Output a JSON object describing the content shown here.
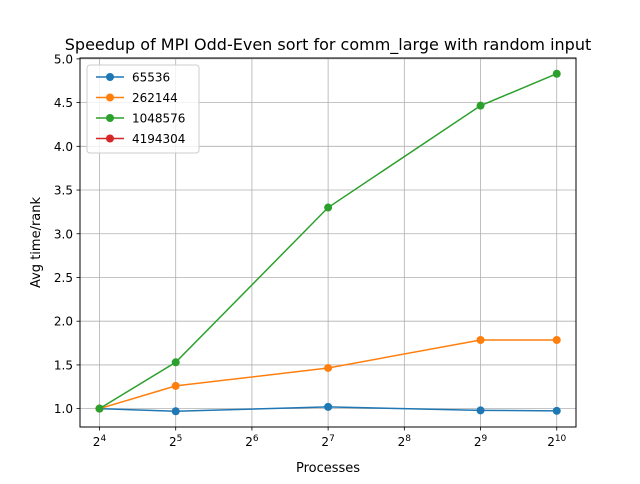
{
  "chart_data": {
    "type": "line",
    "title": "Speedup of MPI Odd-Even sort for comm_large with random input",
    "xlabel": "Processes",
    "ylabel": "Avg time/rank",
    "x_scale": "log2",
    "x_ticks": [
      {
        "value": 16,
        "base": "2",
        "exp": "4"
      },
      {
        "value": 32,
        "base": "2",
        "exp": "5"
      },
      {
        "value": 64,
        "base": "2",
        "exp": "6"
      },
      {
        "value": 128,
        "base": "2",
        "exp": "7"
      },
      {
        "value": 256,
        "base": "2",
        "exp": "8"
      },
      {
        "value": 512,
        "base": "2",
        "exp": "9"
      },
      {
        "value": 1024,
        "base": "2",
        "exp": "10"
      }
    ],
    "xlim": [
      13.4,
      1220
    ],
    "ylim": [
      0.79,
      5.01
    ],
    "y_ticks": [
      "1.0",
      "1.5",
      "2.0",
      "2.5",
      "3.0",
      "3.5",
      "4.0",
      "4.5",
      "5.0"
    ],
    "grid": true,
    "legend_position": "upper-left",
    "series": [
      {
        "name": "65536",
        "color": "#1f77b4",
        "x": [
          16,
          32,
          128,
          512,
          1024
        ],
        "y": [
          1.0,
          0.97,
          1.02,
          0.98,
          0.975
        ]
      },
      {
        "name": "262144",
        "color": "#ff7f0e",
        "x": [
          16,
          32,
          128,
          512,
          1024
        ],
        "y": [
          1.0,
          1.26,
          1.465,
          1.785,
          1.785
        ]
      },
      {
        "name": "1048576",
        "color": "#2ca02c",
        "x": [
          16,
          32,
          128,
          512,
          1024
        ],
        "y": [
          1.0,
          1.53,
          3.3,
          4.465,
          4.83
        ]
      },
      {
        "name": "4194304",
        "color": "#d62728",
        "x": [],
        "y": []
      }
    ]
  }
}
